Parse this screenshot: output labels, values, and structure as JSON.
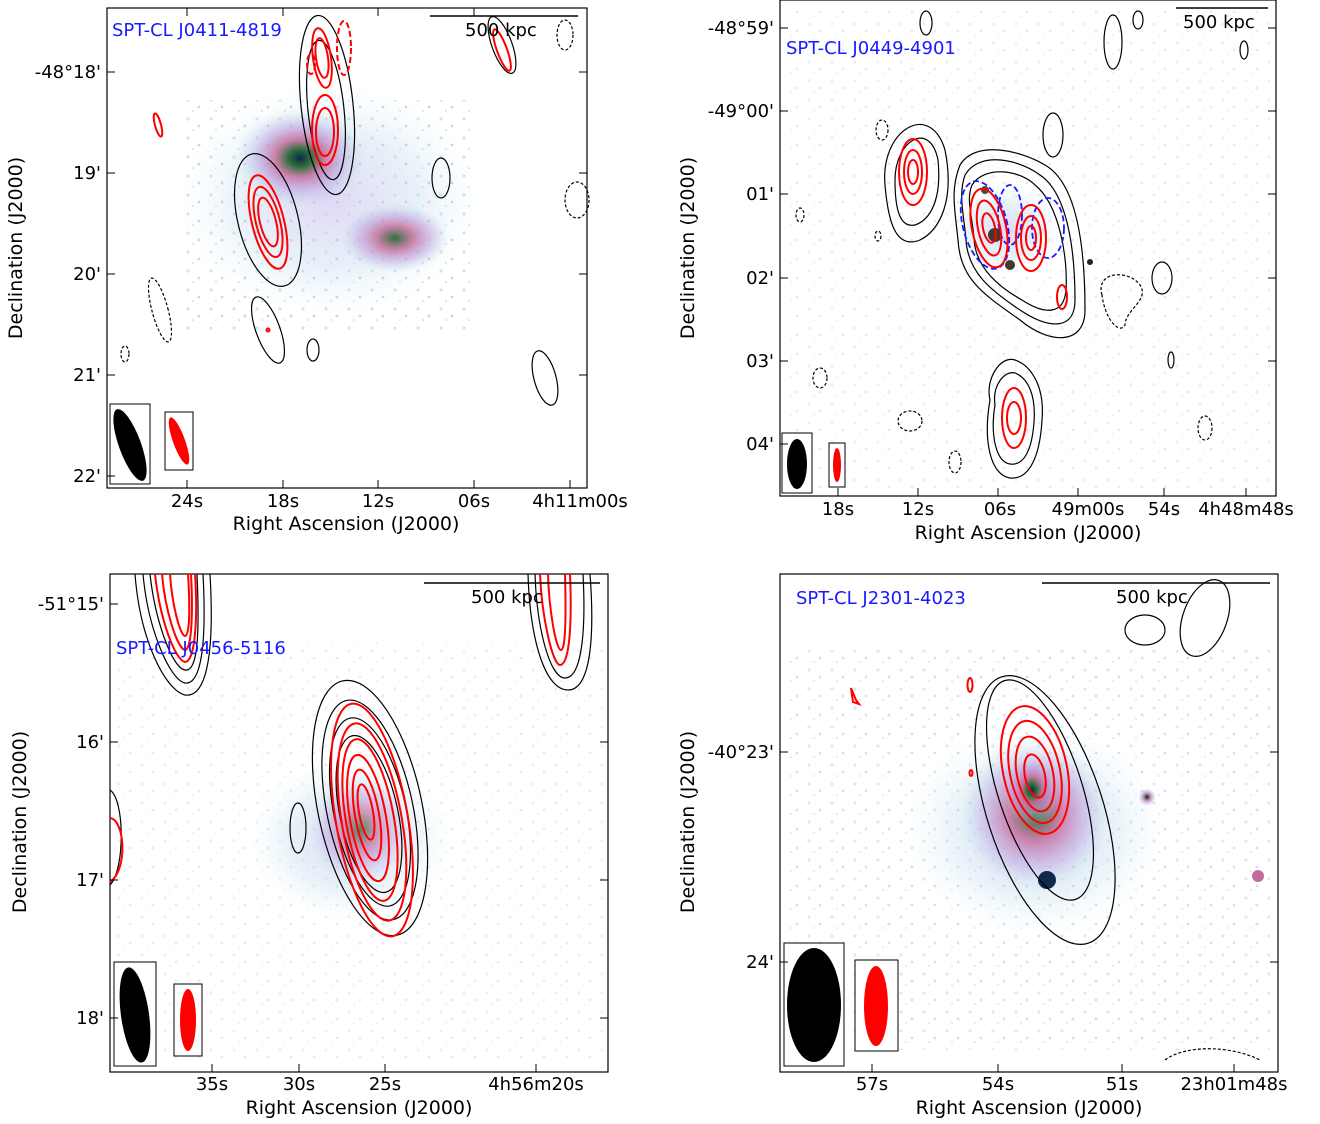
{
  "colors": {
    "black_contour": "#000000",
    "red_contour": "#ff0000",
    "blue_contour": "#1a1aff",
    "cluster_label": "#1a1aff"
  },
  "panels": [
    {
      "cluster": "SPT-CL J0411-4819",
      "scalebar": "500 kpc",
      "xlabel": "Right Ascension (J2000)",
      "ylabel": "Declination (J2000)",
      "xticks": [
        "24s",
        "18s",
        "12s",
        "06s",
        "4h11m00s"
      ],
      "yticks": [
        "-48°18'",
        "19'",
        "20'",
        "21'",
        "22'"
      ]
    },
    {
      "cluster": "SPT-CL J0449-4901",
      "scalebar": "500 kpc",
      "xlabel": "Right Ascension (J2000)",
      "ylabel": "Declination (J2000)",
      "xticks": [
        "18s",
        "12s",
        "06s",
        "49m00s",
        "54s",
        "4h48m48s"
      ],
      "yticks": [
        "-48°59'",
        "-49°00'",
        "01'",
        "02'",
        "03'",
        "04'"
      ]
    },
    {
      "cluster": "SPT-CL J0456-5116",
      "scalebar": "500 kpc",
      "xlabel": "Right Ascension (J2000)",
      "ylabel": "Declination (J2000)",
      "xticks": [
        "35s",
        "30s",
        "25s",
        "4h56m20s"
      ],
      "yticks": [
        "-51°15'",
        "16'",
        "17'",
        "18'"
      ]
    },
    {
      "cluster": "SPT-CL J2301-4023",
      "scalebar": "500 kpc",
      "xlabel": "Right Ascension (J2000)",
      "ylabel": "Declination (J2000)",
      "xticks": [
        "57s",
        "54s",
        "51s",
        "23h01m48s"
      ],
      "yticks": [
        "-40°23'",
        "24'"
      ]
    }
  ]
}
